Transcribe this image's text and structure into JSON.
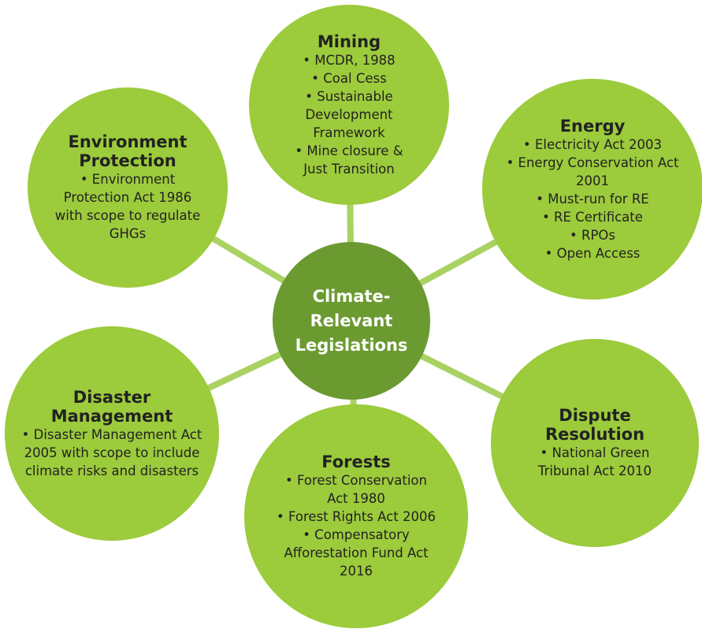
{
  "center": {
    "label": "Climate-Relevant Legislations"
  },
  "nodes": [
    {
      "title": "Mining",
      "items": [
        "• MCDR, 1988",
        "• Coal Cess",
        "• Sustainable Development Framework",
        "• Mine closure & Just Transition"
      ]
    },
    {
      "title": "Energy",
      "items": [
        "• Electricity Act 2003",
        "• Energy Conservation Act 2001",
        "• Must-run for RE",
        "• RE Certificate",
        "• RPOs",
        "• Open Access"
      ]
    },
    {
      "title": "Dispute Resolution",
      "items": [
        "• National Green Tribunal Act 2010"
      ]
    },
    {
      "title": "Forests",
      "items": [
        "• Forest Conservation Act 1980",
        "• Forest Rights Act 2006",
        "• Compensatory Afforestation Fund Act 2016"
      ]
    },
    {
      "title": "Disaster Management",
      "items": [
        "• Disaster Management Act 2005 with scope to include climate risks and disasters"
      ]
    },
    {
      "title": "Environment Protection",
      "items": [
        "• Environment Protection Act 1986 with scope to regulate GHGs"
      ]
    }
  ]
}
